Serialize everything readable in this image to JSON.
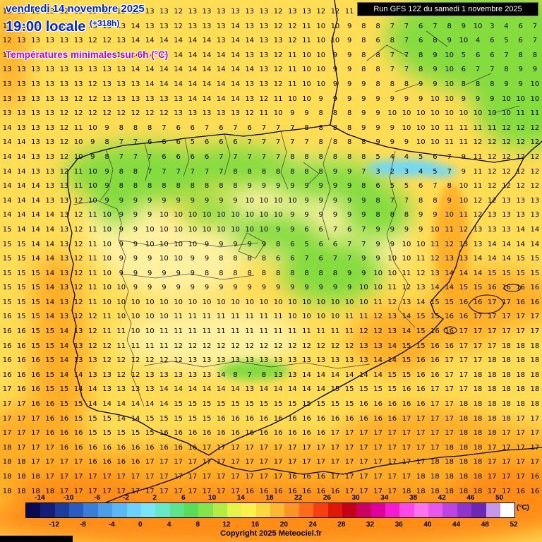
{
  "header": {
    "date_line": "vendredi 14 novembre 2025",
    "time_line": "19:00 locale",
    "offset": "(+318h)",
    "subtitle": "Températures minimales sur 6h (°C)",
    "run_info": "Run GFS 12Z du samedi 1 novembre 2025"
  },
  "footer": {
    "copyright": "Copyright 2025 Meteociel.fr",
    "unit_label": "(°C)"
  },
  "colors": {
    "header_blue": "#0026d4",
    "header_magenta": "#c400c4"
  },
  "legend": {
    "min": -16,
    "max": 52,
    "top_labels": [
      "-14",
      "-10",
      "-6",
      "-2",
      "2",
      "6",
      "10",
      "14",
      "18",
      "22",
      "26",
      "30",
      "34",
      "38",
      "42",
      "46",
      "50"
    ],
    "bottom_labels": [
      "-12",
      "-8",
      "-4",
      "0",
      "4",
      "8",
      "12",
      "16",
      "20",
      "24",
      "28",
      "32",
      "36",
      "40",
      "44",
      "48",
      "52"
    ],
    "cell_colors": [
      "#0a0a50",
      "#141e78",
      "#1e3c9b",
      "#2a5cc0",
      "#3a7ed8",
      "#4c9ce8",
      "#5cb8f4",
      "#6cd2fc",
      "#78e4f8",
      "#66e8c8",
      "#5ce48c",
      "#5cdc54",
      "#84e44c",
      "#b4ec44",
      "#e4f448",
      "#fcf04c",
      "#fcd83c",
      "#fcb830",
      "#fc9424",
      "#fc6c18",
      "#f4400c",
      "#e01808",
      "#c40018",
      "#cc0060",
      "#e000a0",
      "#f41cd0",
      "#fc48e4",
      "#fc74ec",
      "#e858ec",
      "#bc44e0",
      "#9034cc",
      "#6c28b4",
      "#c898e8",
      "#ffffff"
    ]
  },
  "map": {
    "field_colors": {
      "base": "#ffdd55",
      "pale": "#fff1a0",
      "green": "#84dc3c",
      "cyan": "#6ed8f6",
      "orange": "#ffaa22",
      "deep_orange": "#ff8c12"
    },
    "grid_rows": [
      "13 13 13 13 12 13 13 13 13 13 13 13 12 13 13 13 13 13 13 12 13 13 12 12 11 10 10 9 8 8 7 7 6 6 7 7 8 8",
      "12 13 13 12 12 12 13 13 13 14 13 13 12 13 13 13 14 13 13 12 12 11 10 10 9 8 8 7 7 6 7 8 9 10 3 4 6 7",
      "12 13 13 13 13 13 12 12 13 14 14 14 14 14 14 13 14 14 13 13 12 11 10 10 9 8 6 8 7 6 8 9 10 4 6 5 6 7",
      "13 13 13 13 13 12 13 13 14 14 14 14 14 14 14 14 14 13 13 12 11 10 10 9 9 8 8 7 7 8 9 10 5 6 6 7 8 8",
      "13 13 13 13 13 13 13 13 13 14 14 14 14 14 14 14 14 14 13 12 11 10 10 9 9 8 8 7 7 8 9 10 6 7 7 8 9 9",
      "13 13 13 13 13 13 12 13 13 13 14 14 14 14 14 14 14 13 13 12 11 10 10 9 9 9 8 8 8 9 9 10 8 8 8 9 9 10",
      "13 13 13 13 13 12 12 13 13 13 13 13 13 14 14 14 14 13 12 11 10 10 9 9 9 9 9 9 9 9 10 10 9 9 9 10 10 10",
      "13 13 13 13 12 12 12 12 12 12 12 12 13 13 13 13 13 12 11 10 9 9 8 8 8 9 9 10 10 10 10 10 10 10 10 10 11 11",
      "14 13 13 13 12 11 10 9 8 8 8 7 6 6 7 6 7 6 7 7 7 8 8 8 8 9 9 9 10 10 10 11 11 11 11 12 12 12",
      "14 14 13 13 12 10 9 8 7 7 6 6 6 5 6 6 6 7 7 7 7 7 8 8 8 8 9 9 9 10 10 11 11 12 12 12 12 12",
      "14 14 13 13 12 10 9 8 7 7 7 6 6 6 6 7 7 7 7 7 8 8 8 8 8 8 5 4 4 5 6 7 9 11 12 12 12 12",
      "14 14 13 13 12 11 10 9 8 8 7 7 7 7 7 7 8 8 8 8 8 8 8 9 9 7 3 2 3 4 5 7 9 11 12 12 12 12",
      "14 14 14 13 13 11 10 9 8 8 8 8 8 8 8 8 8 9 9 9 9 9 9 9 9 8 6 5 5 6 7 8 10 11 12 12 12 12",
      "14 14 14 13 13 12 10 9 9 9 9 9 9 9 9 9 9 10 10 10 10 9 9 9 9 9 8 7 7 8 8 9 10 12 12 13 13 13",
      "14 14 14 14 13 12 11 10 9 9 9 10 10 10 10 10 10 10 10 10 9 9 9 9 9 9 8 8 8 9 9 10 11 12 13 13 13 13",
      "15 14 14 14 13 12 11 10 9 9 10 10 10 10 10 10 10 10 10 9 9 6 6 7 6 7 9 9 9 9 10 11 12 13 13 13 14 14",
      "15 15 14 14 13 12 11 10 9 9 10 10 10 10 9 9 9 9 9 8 6 5 6 6 7 7 9 9 10 10 11 12 13 13 14 14 14 14",
      "15 15 14 14 13 12 11 10 9 9 9 10 10 9 9 8 8 8 8 6 6 7 6 7 7 9 9 10 10 11 12 13 13 14 14 14 15 15",
      "15 15 15 14 13 12 11 10 9 9 9 9 9 9 8 8 8 8 8 8 8 8 8 8 9 9 10 10 11 12 13 14 14 14 15 15 15 15",
      "15 15 15 14 13 12 11 10 10 9 9 9 9 9 9 9 9 9 9 9 9 9 9 9 9 10 10 11 12 13 14 14 15 15 16 16 16 16",
      "15 15 15 14 13 12 11 10 10 10 10 10 10 10 10 10 10 10 10 10 10 10 10 10 10 10 11 12 13 14 15 15 16 16 17 17 16 16",
      "16 15 15 14 13 12 12 11 10 10 10 10 11 11 11 11 11 11 11 11 10 10 10 10 11 11 12 13 14 15 15 16 16 17 17 17 17 17",
      "16 16 15 15 14 13 12 11 11 10 10 11 11 11 11 11 11 11 11 11 11 11 11 11 11 12 12 13 14 15 16 16 17 17 17 17 17 17",
      "16 16 15 15 14 13 12 12 11 11 11 11 12 12 12 12 12 12 12 12 12 12 12 12 12 13 13 14 15 15 16 16 17 17 17 18 18 18",
      "16 16 16 15 14 13 13 12 12 12 12 12 12 13 13 13 13 13 13 13 13 13 13 13 13 13 14 14 15 16 16 17 17 17 18 18 18 18",
      "16 16 16 15 14 14 13 13 12 12 13 13 13 13 13 14 8 7 8 13 13 14 14 14 14 14 14 15 15 16 16 17 17 18 18 18 18 18",
      "17 16 16 15 15 14 14 13 13 13 13 14 14 14 14 14 14 13 14 14 14 14 14 15 15 15 15 15 16 16 17 17 17 18 18 18 18 18",
      "17 17 16 16 15 15 14 14 14 14 14 14 15 15 15 15 15 15 15 15 15 15 15 15 15 16 16 16 16 16 17 17 18 18 18 18 18 18",
      "17 17 17 16 16 15 15 15 14 14 15 15 15 15 15 16 16 16 16 16 16 16 16 16 16 16 16 16 17 17 17 17 18 18 18 18 17 17",
      "17 17 17 16 16 16 15 15 15 15 15 16 16 16 16 16 16 16 16 16 16 16 16 17 17 17 17 17 17 17 17 17 18 18 18 17 17 17",
      "18 17 17 17 16 16 16 16 16 16 16 16 16 16 17 17 17 17 17 17 17 17 17 17 17 17 17 17 17 17 17 18 18 18 17 17 17 17",
      "18 18 17 17 17 17 16 16 16 16 17 17 17 17 17 17 17 17 17 17 17 17 17 17 17 17 17 17 17 17 18 18 18 18 17 17 17 17",
      "18 18 18 17 17 17 17 17 17 17 17 17 17 17 17 17 17 17 17 17 16 16 16 17 17 17 17 17 17 18 18 18 18 18 17 17 17 16",
      "18 18 18 18 17 17 17 17 17 17 17 17 17 17 17 17 17 16 16 16 16 16 16 16 17 17 17 17 18 18 18 18 18 18 17 17 16 16"
    ]
  }
}
